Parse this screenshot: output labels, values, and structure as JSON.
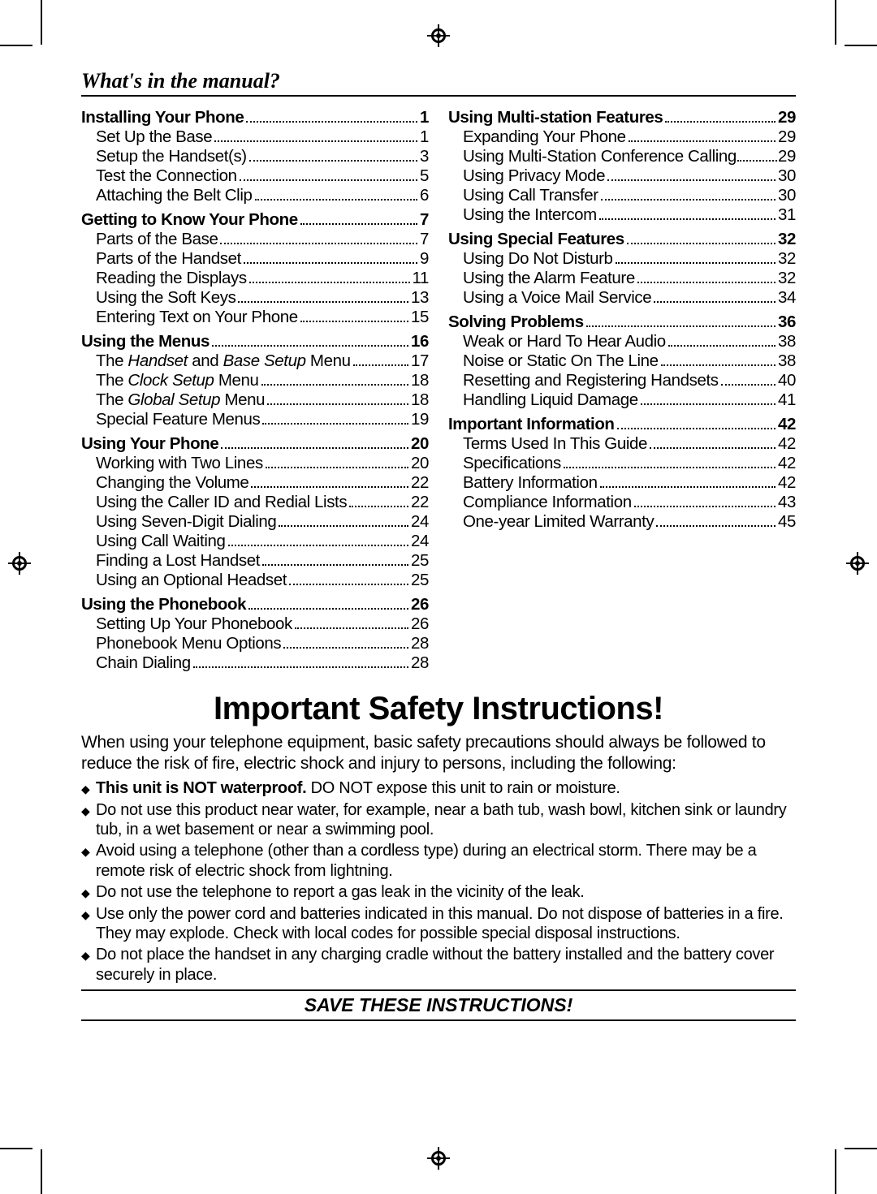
{
  "crop_marks": {
    "color": "#000000",
    "reg_mark_positions": [
      "top-center",
      "left-center",
      "right-center",
      "bottom-center"
    ]
  },
  "heading": "What's in the manual?",
  "toc": {
    "left": [
      {
        "type": "section",
        "label": "Installing Your Phone",
        "page": "1"
      },
      {
        "type": "item",
        "label": "Set Up the Base",
        "page": "1"
      },
      {
        "type": "item",
        "label": "Setup the Handset(s)",
        "page": "3"
      },
      {
        "type": "item",
        "label": "Test the Connection",
        "page": "5"
      },
      {
        "type": "item",
        "label": "Attaching the Belt Clip",
        "page": "6"
      },
      {
        "type": "section",
        "label": "Getting to Know Your Phone",
        "page": "7"
      },
      {
        "type": "item",
        "label": "Parts of the Base",
        "page": "7"
      },
      {
        "type": "item",
        "label": "Parts of the Handset",
        "page": "9"
      },
      {
        "type": "item",
        "label": "Reading the Displays",
        "page": "11"
      },
      {
        "type": "item",
        "label": "Using the Soft Keys",
        "page": "13"
      },
      {
        "type": "item",
        "label": "Entering Text on Your Phone",
        "page": "15"
      },
      {
        "type": "section",
        "label": "Using the Menus",
        "page": "16"
      },
      {
        "type": "item",
        "label_html": "The <em>Handset</em> and <em>Base Setup</em> Menu",
        "page": "17"
      },
      {
        "type": "item",
        "label_html": "The <em>Clock Setup</em> Menu",
        "page": "18"
      },
      {
        "type": "item",
        "label_html": "The <em>Global Setup</em> Menu",
        "page": "18"
      },
      {
        "type": "item",
        "label": "Special Feature Menus",
        "page": "19"
      },
      {
        "type": "section",
        "label": "Using Your Phone",
        "page": "20"
      },
      {
        "type": "item",
        "label": "Working with Two Lines",
        "page": "20"
      },
      {
        "type": "item",
        "label": "Changing the Volume",
        "page": "22"
      },
      {
        "type": "item",
        "label": "Using the Caller ID and Redial Lists",
        "page": "22"
      },
      {
        "type": "item",
        "label": "Using Seven-Digit Dialing",
        "page": "24"
      },
      {
        "type": "item",
        "label": "Using Call Waiting",
        "page": "24"
      },
      {
        "type": "item",
        "label": "Finding a Lost Handset",
        "page": "25"
      },
      {
        "type": "item",
        "label": "Using an Optional Headset",
        "page": "25"
      },
      {
        "type": "section",
        "label": "Using the Phonebook",
        "page": "26"
      },
      {
        "type": "item",
        "label": "Setting Up Your Phonebook",
        "page": "26"
      },
      {
        "type": "item",
        "label": "Phonebook Menu Options",
        "page": "28"
      },
      {
        "type": "item",
        "label": "Chain Dialing",
        "page": "28"
      }
    ],
    "right": [
      {
        "type": "section",
        "label": "Using Multi-station Features",
        "page": "29"
      },
      {
        "type": "item",
        "label": "Expanding Your Phone",
        "page": "29"
      },
      {
        "type": "item",
        "label": "Using Multi-Station Conference Calling",
        "page": "29",
        "tight": true
      },
      {
        "type": "item",
        "label": "Using Privacy Mode",
        "page": "30"
      },
      {
        "type": "item",
        "label": "Using Call Transfer",
        "page": "30"
      },
      {
        "type": "item",
        "label": "Using the Intercom",
        "page": "31"
      },
      {
        "type": "section",
        "label": "Using Special Features",
        "page": "32"
      },
      {
        "type": "item",
        "label": "Using Do Not Disturb",
        "page": "32"
      },
      {
        "type": "item",
        "label": "Using the Alarm Feature",
        "page": "32"
      },
      {
        "type": "item",
        "label": "Using a Voice Mail Service",
        "page": "34"
      },
      {
        "type": "section",
        "label": "Solving Problems",
        "page": "36"
      },
      {
        "type": "item",
        "label": "Weak or Hard To Hear Audio",
        "page": "38"
      },
      {
        "type": "item",
        "label": "Noise or Static On The Line",
        "page": "38"
      },
      {
        "type": "item",
        "label": "Resetting and Registering Handsets",
        "page": "40"
      },
      {
        "type": "item",
        "label": "Handling Liquid Damage",
        "page": "41"
      },
      {
        "type": "section",
        "label": "Important Information",
        "page": "42"
      },
      {
        "type": "item",
        "label": "Terms Used In This Guide",
        "page": "42"
      },
      {
        "type": "item",
        "label": "Specifications",
        "page": "42"
      },
      {
        "type": "item",
        "label": "Battery Information",
        "page": "42"
      },
      {
        "type": "item",
        "label": "Compliance Information",
        "page": "43"
      },
      {
        "type": "item",
        "label": "One-year Limited Warranty",
        "page": "45"
      }
    ]
  },
  "safety": {
    "title": "Important Safety Instructions!",
    "intro": "When using your telephone equipment, basic safety precautions should always be followed to reduce the risk of fire, electric shock and injury to persons, including the following:",
    "items": [
      {
        "bold": "This unit is NOT waterproof.",
        "rest": " DO NOT expose this unit to rain or moisture."
      },
      {
        "rest": "Do not use this product near water, for example, near a bath tub, wash bowl, kitchen sink or laundry tub, in a wet basement or near a swimming pool."
      },
      {
        "rest": "Avoid using a telephone (other than a cordless type) during an electrical storm. There may be a remote risk of electric shock from lightning."
      },
      {
        "rest": "Do not use the telephone to report a gas leak in the vicinity of the leak."
      },
      {
        "rest": "Use only the power cord and batteries indicated in this manual. Do not dispose of batteries in a fire. They may explode. Check with local codes for possible special disposal instructions."
      },
      {
        "rest": "Do not place the handset in any charging cradle without the battery installed and the battery cover securely in place."
      }
    ],
    "save": "SAVE THESE INSTRUCTIONS!"
  },
  "styling": {
    "page_bg": "#ffffff",
    "text_color": "#000000",
    "heading_font": "Georgia serif italic bold 26px",
    "toc_font": "Arial 20.5px",
    "safety_title_font": "Arial bold 40px",
    "body_font": "Arial 20-21px",
    "rule_color": "#000000"
  }
}
